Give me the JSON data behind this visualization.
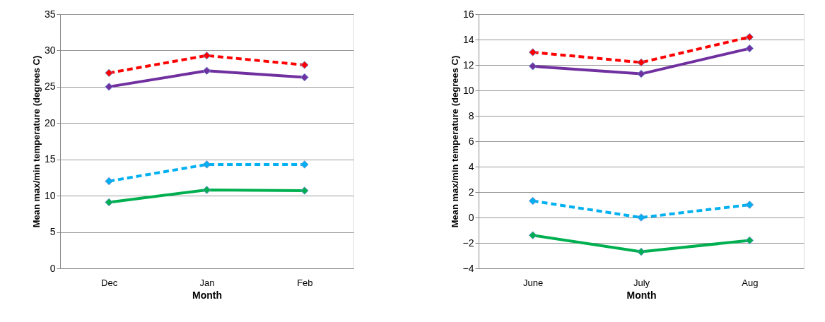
{
  "chart_data": [
    {
      "type": "line",
      "xlabel": "Month",
      "ylabel": "Mean max/min temperature (degrees C)",
      "categories": [
        "Dec",
        "Jan",
        "Feb"
      ],
      "ylim": [
        0,
        35
      ],
      "yticks": [
        0,
        5,
        10,
        15,
        20,
        25,
        30,
        35
      ],
      "grid": "y",
      "marker": "diamond",
      "series": [
        {
          "color": "#ff0000",
          "line_style": "dashed",
          "values": [
            26.9,
            29.3,
            28.0
          ]
        },
        {
          "color": "#7030a0",
          "line_style": "solid",
          "values": [
            25.0,
            27.2,
            26.3
          ]
        },
        {
          "color": "#00b0f0",
          "line_style": "dashed",
          "values": [
            12.0,
            14.3,
            14.3
          ]
        },
        {
          "color": "#00b050",
          "line_style": "solid",
          "values": [
            9.1,
            10.8,
            10.7
          ]
        }
      ]
    },
    {
      "type": "line",
      "xlabel": "Month",
      "ylabel": "Mean max/min temperature (degrees C)",
      "categories": [
        "June",
        "July",
        "Aug"
      ],
      "ylim": [
        -4,
        16
      ],
      "yticks": [
        -4,
        -2,
        0,
        2,
        4,
        6,
        8,
        10,
        12,
        14,
        16
      ],
      "grid": "y",
      "marker": "diamond",
      "series": [
        {
          "color": "#ff0000",
          "line_style": "dashed",
          "values": [
            13.0,
            12.2,
            14.2
          ]
        },
        {
          "color": "#7030a0",
          "line_style": "solid",
          "values": [
            11.9,
            11.3,
            13.3
          ]
        },
        {
          "color": "#00b0f0",
          "line_style": "dashed",
          "values": [
            1.3,
            0.0,
            1.0
          ]
        },
        {
          "color": "#00b050",
          "line_style": "solid",
          "values": [
            -1.4,
            -2.7,
            -1.8
          ]
        }
      ]
    }
  ]
}
